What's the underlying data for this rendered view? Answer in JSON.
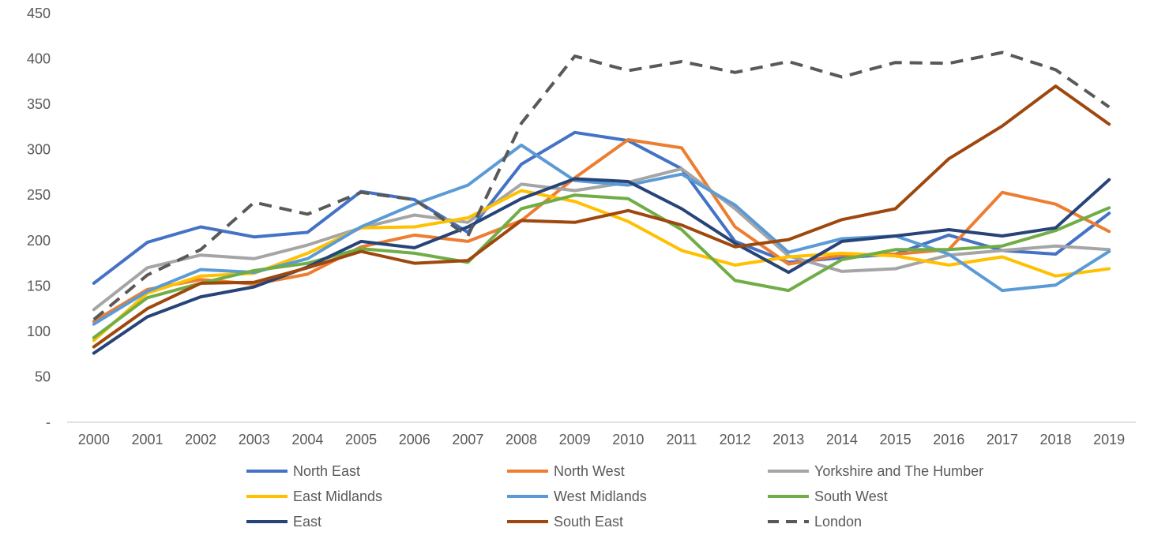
{
  "chart_data": {
    "type": "line",
    "title": "",
    "xlabel": "",
    "ylabel": "",
    "ylim": [
      0,
      450
    ],
    "y_ticks": [
      0,
      50,
      100,
      150,
      200,
      250,
      300,
      350,
      400,
      450
    ],
    "y_tick_labels": [
      "-",
      "50",
      "100",
      "150",
      "200",
      "250",
      "300",
      "350",
      "400",
      "450"
    ],
    "categories": [
      "2000",
      "2001",
      "2002",
      "2003",
      "2004",
      "2005",
      "2006",
      "2007",
      "2008",
      "2009",
      "2010",
      "2011",
      "2012",
      "2013",
      "2014",
      "2015",
      "2016",
      "2017",
      "2018",
      "2019"
    ],
    "grid": false,
    "legend_position": "bottom",
    "series": [
      {
        "name": "North East",
        "color": "#4472C4",
        "dash": false,
        "values": [
          153,
          198,
          215,
          204,
          209,
          254,
          245,
          209,
          284,
          319,
          310,
          279,
          199,
          176,
          181,
          185,
          206,
          189,
          185,
          230
        ]
      },
      {
        "name": "North West",
        "color": "#ED7D31",
        "dash": false,
        "values": [
          111,
          146,
          157,
          152,
          163,
          193,
          206,
          199,
          222,
          269,
          311,
          302,
          215,
          174,
          184,
          185,
          190,
          253,
          240,
          210
        ]
      },
      {
        "name": "Yorkshire and The Humber",
        "color": "#A5A5A5",
        "dash": false,
        "values": [
          124,
          170,
          184,
          180,
          195,
          214,
          228,
          220,
          262,
          255,
          264,
          279,
          235,
          183,
          166,
          169,
          184,
          189,
          194,
          190
        ]
      },
      {
        "name": "East Midlands",
        "color": "#FFC000",
        "dash": false,
        "values": [
          90,
          142,
          161,
          164,
          186,
          214,
          215,
          225,
          255,
          243,
          221,
          189,
          173,
          182,
          186,
          183,
          173,
          182,
          161,
          169
        ]
      },
      {
        "name": "West Midlands",
        "color": "#5B9BD5",
        "dash": false,
        "values": [
          108,
          144,
          168,
          165,
          180,
          215,
          240,
          261,
          305,
          266,
          261,
          273,
          239,
          187,
          202,
          205,
          185,
          145,
          151,
          188
        ]
      },
      {
        "name": "South West",
        "color": "#70AD47",
        "dash": false,
        "values": [
          93,
          137,
          153,
          167,
          175,
          191,
          186,
          176,
          235,
          250,
          246,
          212,
          156,
          145,
          179,
          190,
          190,
          194,
          211,
          236
        ]
      },
      {
        "name": "East",
        "color": "#264478",
        "dash": false,
        "values": [
          76,
          116,
          138,
          149,
          171,
          199,
          192,
          215,
          246,
          268,
          265,
          235,
          197,
          165,
          199,
          205,
          212,
          205,
          214,
          267
        ]
      },
      {
        "name": "South East",
        "color": "#9E480E",
        "dash": false,
        "values": [
          83,
          125,
          153,
          154,
          170,
          188,
          175,
          178,
          222,
          220,
          233,
          217,
          193,
          201,
          223,
          235,
          290,
          326,
          370,
          328
        ]
      },
      {
        "name": "London",
        "color": "#595959",
        "dash": true,
        "values": [
          113,
          162,
          190,
          242,
          229,
          253,
          245,
          205,
          329,
          403,
          387,
          397,
          385,
          397,
          380,
          396,
          395,
          407,
          388,
          347
        ]
      }
    ]
  }
}
